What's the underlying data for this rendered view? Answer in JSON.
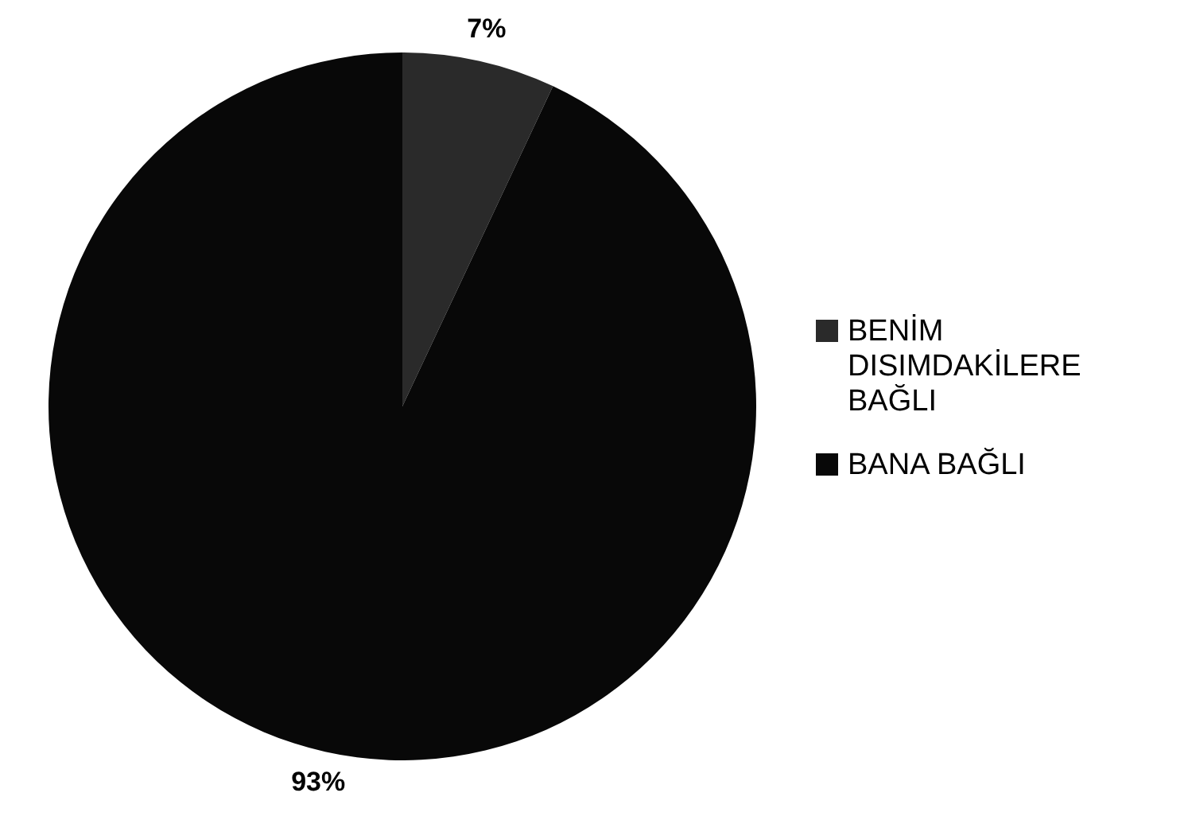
{
  "chart_data": {
    "type": "pie",
    "categories": [
      "BENİM DISIMDAKİLERE BAĞLI",
      "BANA BAĞLI"
    ],
    "values": [
      7,
      93
    ],
    "value_labels": [
      "7%",
      "93%"
    ],
    "colors": [
      "#2a2a2a",
      "#080808"
    ],
    "legend": "right"
  }
}
